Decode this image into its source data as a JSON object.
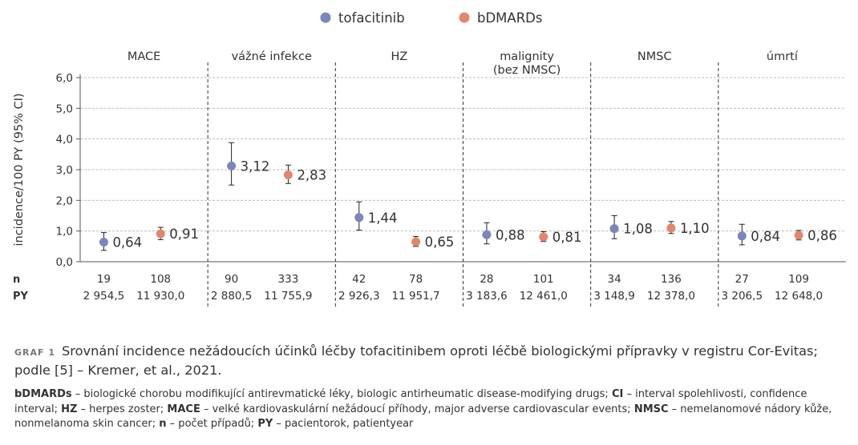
{
  "chart_data": {
    "type": "scatter",
    "ylabel": "incidence/100 PY (95% CI)",
    "ylim": [
      0,
      6
    ],
    "yticks": [
      "0,0",
      "1,0",
      "2,0",
      "3,0",
      "4,0",
      "5,0",
      "6,0"
    ],
    "grid": true,
    "legend_position": "top-center",
    "series": [
      {
        "name": "tofacitinib",
        "color": "#7b86bb"
      },
      {
        "name": "bDMARDs",
        "color": "#e0876d"
      }
    ],
    "row_labels": {
      "n": "n",
      "py": "PY"
    },
    "categories": [
      {
        "label": "MACE",
        "points": [
          {
            "series": "tofacitinib",
            "value": 0.64,
            "label": "0,64",
            "ci": [
              0.37,
              0.95
            ],
            "n": "19",
            "py": "2 954,5"
          },
          {
            "series": "bDMARDs",
            "value": 0.91,
            "label": "0,91",
            "ci": [
              0.72,
              1.12
            ],
            "n": "108",
            "py": "11 930,0"
          }
        ]
      },
      {
        "label": "vážné infekce",
        "points": [
          {
            "series": "tofacitinib",
            "value": 3.12,
            "label": "3,12",
            "ci": [
              2.5,
              3.88
            ],
            "n": "90",
            "py": "2 880,5"
          },
          {
            "series": "bDMARDs",
            "value": 2.83,
            "label": "2,83",
            "ci": [
              2.55,
              3.15
            ],
            "n": "333",
            "py": "11 755,9"
          }
        ]
      },
      {
        "label": "HZ",
        "points": [
          {
            "series": "tofacitinib",
            "value": 1.44,
            "label": "1,44",
            "ci": [
              1.03,
              1.95
            ],
            "n": "42",
            "py": "2 926,3"
          },
          {
            "series": "bDMARDs",
            "value": 0.65,
            "label": "0,65",
            "ci": [
              0.5,
              0.82
            ],
            "n": "78",
            "py": "11 951,7"
          }
        ]
      },
      {
        "label": "malignity (bez NMSC)",
        "points": [
          {
            "series": "tofacitinib",
            "value": 0.88,
            "label": "0,88",
            "ci": [
              0.58,
              1.27
            ],
            "n": "28",
            "py": "3 183,6"
          },
          {
            "series": "bDMARDs",
            "value": 0.81,
            "label": "0,81",
            "ci": [
              0.66,
              0.98
            ],
            "n": "101",
            "py": "12 461,0"
          }
        ]
      },
      {
        "label": "NMSC",
        "points": [
          {
            "series": "tofacitinib",
            "value": 1.08,
            "label": "1,08",
            "ci": [
              0.75,
              1.5
            ],
            "n": "34",
            "py": "3 148,9"
          },
          {
            "series": "bDMARDs",
            "value": 1.1,
            "label": "1,10",
            "ci": [
              0.92,
              1.31
            ],
            "n": "136",
            "py": "12 378,0"
          }
        ]
      },
      {
        "label": "úmrtí",
        "points": [
          {
            "series": "tofacitinib",
            "value": 0.84,
            "label": "0,84",
            "ci": [
              0.55,
              1.22
            ],
            "n": "27",
            "py": "3 206,5"
          },
          {
            "series": "bDMARDs",
            "value": 0.86,
            "label": "0,86",
            "ci": [
              0.71,
              1.02
            ],
            "n": "109",
            "py": "12 648,0"
          }
        ]
      }
    ]
  },
  "caption": {
    "number": "GRAF 1",
    "text": "Srovnání incidence nežádoucích účinků léčby tofacitinibem oproti léčbě biologickými přípravky v registru Cor-Evitas; podle [5] – Kremer, et al., 2021."
  },
  "notes": [
    {
      "term": "bDMARDs",
      "def": " – biologické chorobu modifikující antirevmatické léky, biologic antirheumatic disease-modifying drugs; "
    },
    {
      "term": "CI",
      "def": " – interval spolehlivosti, confidence interval; "
    },
    {
      "term": "HZ",
      "def": " – herpes zoster; "
    },
    {
      "term": "MACE",
      "def": " – velké kardiovaskulární nežádoucí příhody, major adverse cardiovascular events; "
    },
    {
      "term": "NMSC",
      "def": " – nemelanomové nádory kůže, nonmelanoma skin cancer; "
    },
    {
      "term": "n",
      "def": " – počet případů; "
    },
    {
      "term": "PY",
      "def": " – pacientorok, patientyear"
    }
  ]
}
